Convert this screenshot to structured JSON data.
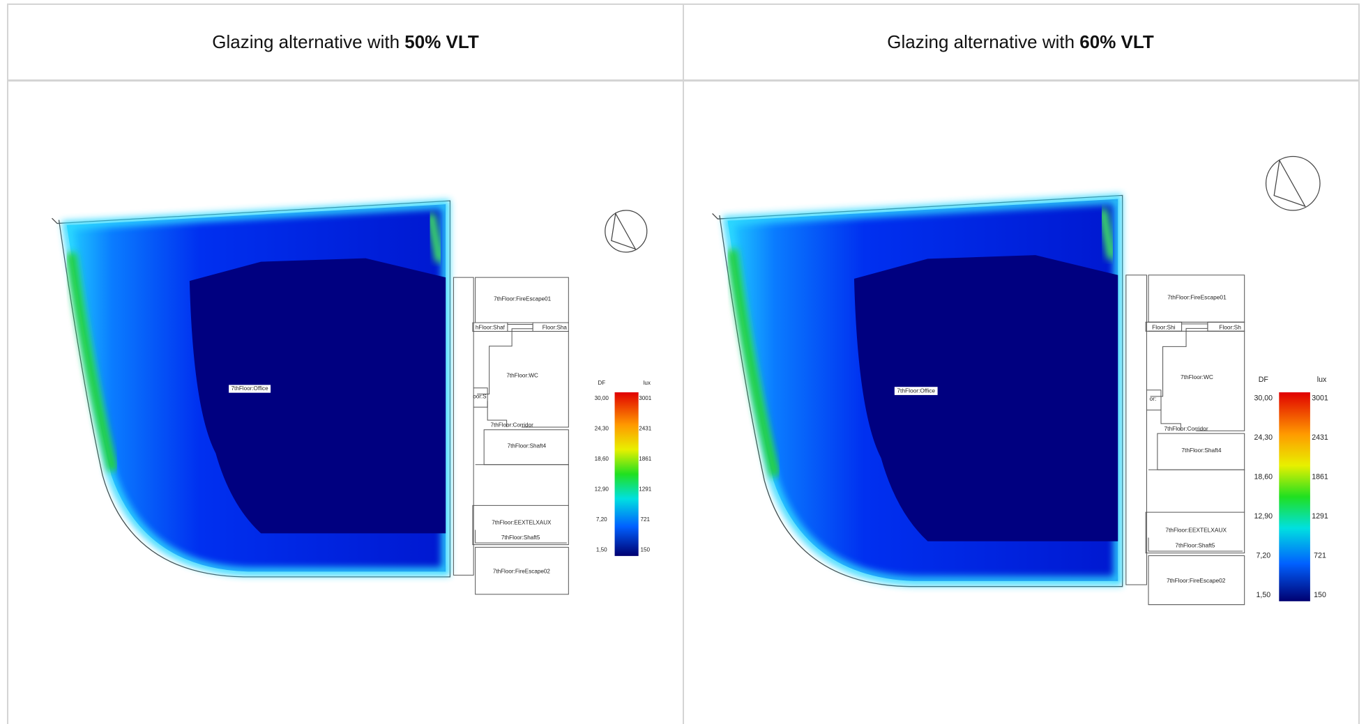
{
  "table": {
    "header": [
      {
        "text": "Glazing alternative with ",
        "bold": "50% VLT"
      },
      {
        "text": "Glazing alternative with ",
        "bold": "60% VLT"
      }
    ],
    "panels": [
      {
        "rooms": [
          "7thFloor:Office",
          "7thFloor:FireEscape01",
          "hFloor:Shaf",
          "Floor:Sha",
          "7thFloor:WC",
          "oor:S",
          "7thFloor:Corridor",
          "7thFloor:Shaft4",
          "7thFloor:EEXTELXAUX",
          "7thFloor:Shaft5",
          "7thFloor:FireEscape02"
        ],
        "legend": {
          "df_title": "DF",
          "lux_title": "lux",
          "df": [
            "30,00",
            "24,30",
            "18,60",
            "12,90",
            "7,20",
            "1,50"
          ],
          "lux": [
            "3001",
            "2431",
            "1861",
            "1291",
            "721",
            "150"
          ]
        }
      },
      {
        "rooms": [
          "7thFloor:Office",
          "7thFloor:FireEscape01",
          "Floor:Shi",
          "Floor:Sh",
          "7thFloor:WC",
          "or:",
          "7thFloor:Corridor",
          "7thFloor:Shaft4",
          "7thFloor:EEXTELXAUX",
          "7thFloor:Shaft5",
          "7thFloor:FireEscape02"
        ],
        "legend": {
          "df_title": "DF",
          "lux_title": "lux",
          "df": [
            "30,00",
            "24,30",
            "18,60",
            "12,90",
            "7,20",
            "1,50"
          ],
          "lux": [
            "3001",
            "2431",
            "1861",
            "1291",
            "721",
            "150"
          ]
        }
      }
    ]
  }
}
